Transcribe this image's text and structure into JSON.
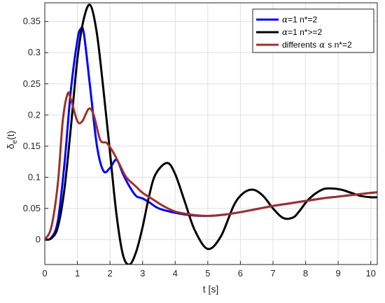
{
  "chart_data": {
    "type": "line",
    "xlabel": "t [s]",
    "ylabel_main": "δ",
    "ylabel_sub": "e",
    "ylabel_tail": "(t)",
    "xlim": [
      0,
      10.2
    ],
    "ylim": [
      -0.04,
      0.38
    ],
    "xticks": [
      0,
      1,
      2,
      3,
      4,
      5,
      6,
      7,
      8,
      9,
      10
    ],
    "xtick_labels": [
      "0",
      "1",
      "2",
      "3",
      "4",
      "5",
      "6",
      "7",
      "8",
      "9",
      "10"
    ],
    "yticks": [
      0,
      0.05,
      0.1,
      0.15,
      0.2,
      0.25,
      0.3,
      0.35
    ],
    "ytick_labels": [
      "0",
      "0.05",
      "0.1",
      "0.15",
      "0.2",
      "0.25",
      "0.3",
      "0.35"
    ],
    "grid": true,
    "legend_position": "top-right",
    "series": [
      {
        "name": "α=1 n*=2",
        "legend_label": "=1 n*=2",
        "legend_symbol": "α",
        "color": "#0000ff",
        "x": [
          0,
          0.2,
          0.4,
          0.6,
          0.8,
          1.0,
          1.1,
          1.2,
          1.4,
          1.6,
          1.8,
          2.0,
          2.2,
          2.4,
          2.6,
          2.8,
          3.0,
          3.2,
          3.5,
          4.0,
          4.5,
          5.0,
          5.5,
          6.0,
          6.5,
          7.0,
          7.5,
          8.0,
          8.5,
          9.0,
          9.5,
          10.0,
          10.2
        ],
        "y": [
          0,
          0.003,
          0.03,
          0.12,
          0.24,
          0.32,
          0.338,
          0.33,
          0.24,
          0.15,
          0.11,
          0.115,
          0.128,
          0.105,
          0.085,
          0.07,
          0.066,
          0.06,
          0.05,
          0.043,
          0.039,
          0.038,
          0.04,
          0.044,
          0.049,
          0.054,
          0.058,
          0.062,
          0.066,
          0.069,
          0.072,
          0.075,
          0.076
        ]
      },
      {
        "name": "α=1 n*>=2",
        "legend_label": "=1 n*>=2",
        "legend_symbol": "α",
        "color": "#000000",
        "x": [
          0,
          0.2,
          0.4,
          0.6,
          0.8,
          1.0,
          1.2,
          1.4,
          1.6,
          1.8,
          2.0,
          2.2,
          2.4,
          2.6,
          2.8,
          3.0,
          3.2,
          3.4,
          3.75,
          4.0,
          4.3,
          4.6,
          5.0,
          5.4,
          5.8,
          6.1,
          6.4,
          6.7,
          7.0,
          7.3,
          7.6,
          7.8,
          8.1,
          8.5,
          8.8,
          9.1,
          9.4,
          9.7,
          10.0,
          10.2
        ],
        "y": [
          0,
          0.002,
          0.02,
          0.08,
          0.18,
          0.29,
          0.355,
          0.376,
          0.33,
          0.24,
          0.14,
          0.04,
          -0.025,
          -0.04,
          -0.02,
          0.02,
          0.07,
          0.105,
          0.123,
          0.105,
          0.06,
          0.015,
          -0.015,
          0.005,
          0.055,
          0.075,
          0.08,
          0.07,
          0.05,
          0.035,
          0.035,
          0.045,
          0.065,
          0.08,
          0.082,
          0.08,
          0.075,
          0.07,
          0.068,
          0.068
        ]
      },
      {
        "name": "differents α s  n*=2",
        "legend_label": "differents",
        "legend_symbol": "α",
        "legend_suffix": "s  n*=2",
        "color": "#a0302a",
        "x": [
          0,
          0.2,
          0.4,
          0.55,
          0.7,
          0.8,
          1.0,
          1.15,
          1.35,
          1.5,
          1.7,
          1.9,
          2.1,
          2.3,
          2.5,
          2.8,
          3.0,
          3.3,
          3.6,
          4.0,
          4.5,
          5.0,
          5.5,
          6.0,
          6.5,
          7.0,
          7.5,
          8.0,
          8.5,
          9.0,
          9.5,
          10.0,
          10.2
        ],
        "y": [
          0,
          0.02,
          0.09,
          0.19,
          0.234,
          0.225,
          0.19,
          0.19,
          0.21,
          0.2,
          0.16,
          0.155,
          0.14,
          0.12,
          0.1,
          0.085,
          0.075,
          0.065,
          0.055,
          0.045,
          0.04,
          0.038,
          0.04,
          0.044,
          0.049,
          0.054,
          0.058,
          0.062,
          0.066,
          0.069,
          0.072,
          0.075,
          0.076
        ]
      }
    ]
  }
}
